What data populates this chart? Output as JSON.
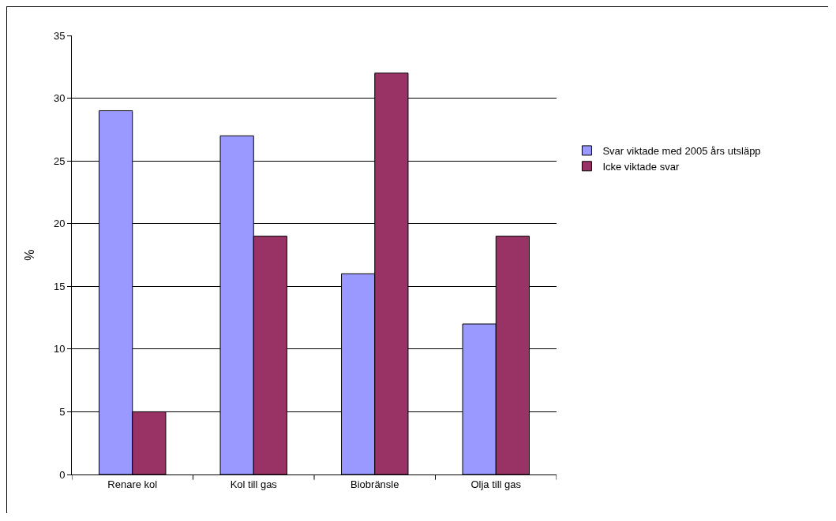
{
  "chart_data": {
    "type": "bar",
    "ylabel": "%",
    "categories": [
      "Renare kol",
      "Kol till gas",
      "Biobränsle",
      "Olja till gas"
    ],
    "series": [
      {
        "name": "Svar viktade med 2005 års utsläpp",
        "color": "#9999ff",
        "values": [
          29,
          27,
          16,
          12
        ]
      },
      {
        "name": "Icke viktade svar",
        "color": "#993366",
        "values": [
          5,
          19,
          32,
          19
        ]
      }
    ],
    "ylim": [
      0,
      35
    ],
    "yticks": [
      0,
      5,
      10,
      15,
      20,
      25,
      30,
      35
    ],
    "grid": "y",
    "legend": "right"
  }
}
